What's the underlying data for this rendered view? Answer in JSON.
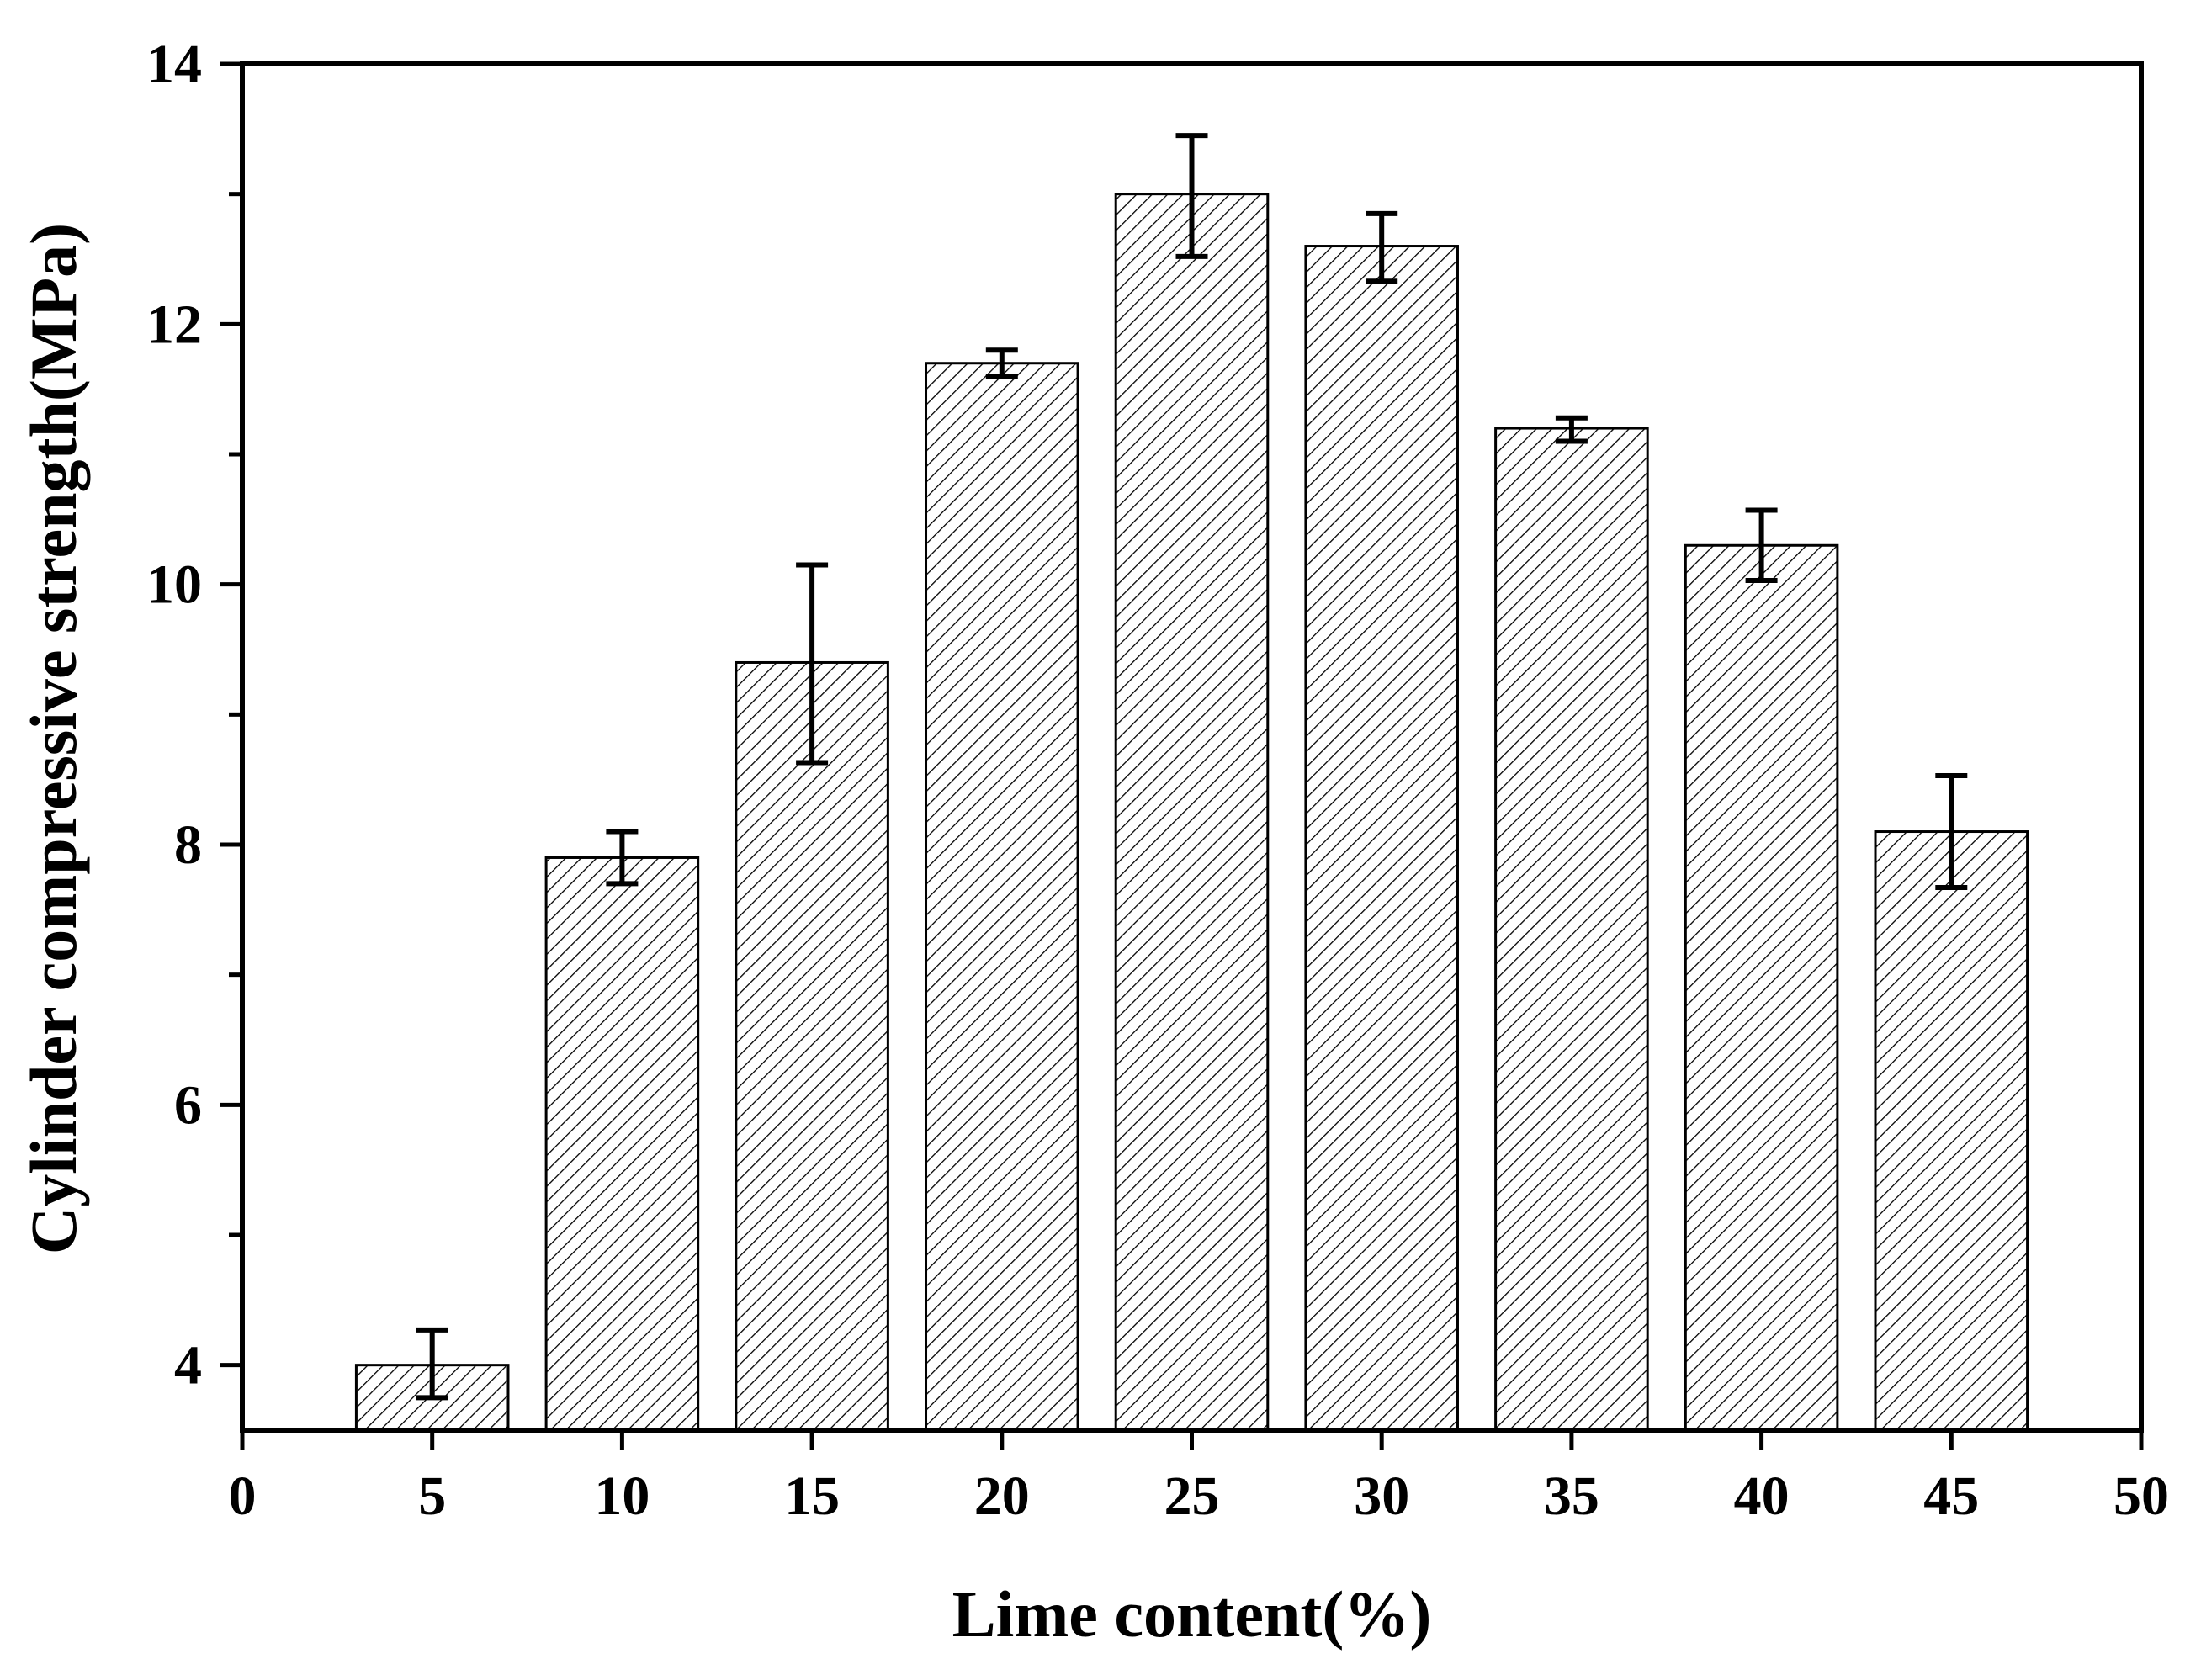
{
  "chart_data": {
    "type": "bar",
    "title": "",
    "xlabel": "Lime content(%)",
    "ylabel": "Cylinder compressive strength(MPa)",
    "x": [
      5,
      10,
      15,
      20,
      25,
      30,
      35,
      40,
      45
    ],
    "values": [
      4.0,
      7.9,
      9.4,
      11.7,
      13.0,
      12.6,
      11.2,
      10.3,
      8.1
    ],
    "error_upper": [
      4.27,
      8.1,
      10.15,
      11.8,
      13.45,
      12.85,
      11.28,
      10.57,
      8.53
    ],
    "error_lower": [
      3.75,
      7.7,
      8.63,
      11.6,
      12.52,
      12.33,
      11.1,
      10.03,
      7.67
    ],
    "xlim": [
      0,
      50
    ],
    "ylim": [
      3.5,
      14
    ],
    "x_ticks": [
      "0",
      "5",
      "10",
      "15",
      "20",
      "25",
      "30",
      "35",
      "40",
      "45",
      "50"
    ],
    "y_ticks": [
      "4",
      "6",
      "8",
      "10",
      "12",
      "14"
    ],
    "bar_fill": "diagonal hatch",
    "grid": false,
    "legend": "none",
    "colors": {
      "axis": "#000000",
      "hatch": "#000000",
      "background": "#ffffff"
    }
  }
}
